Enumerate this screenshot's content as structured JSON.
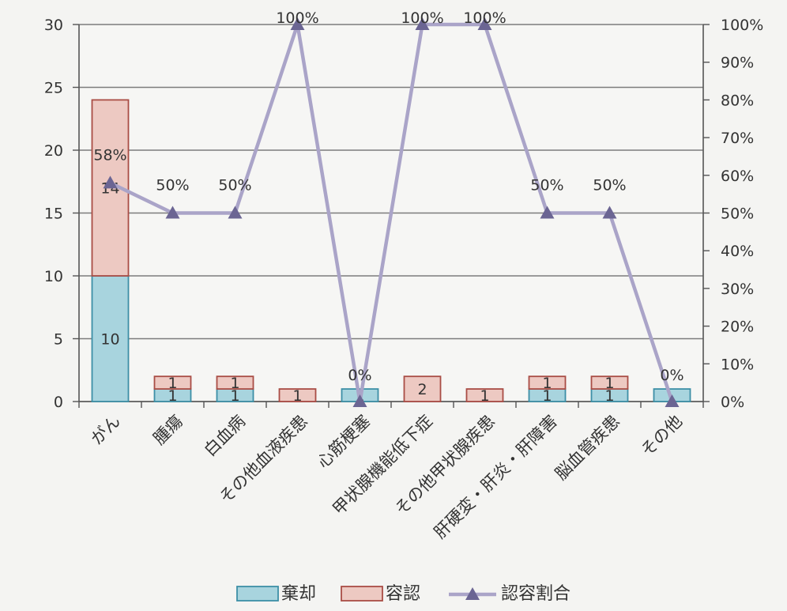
{
  "chart_data": {
    "type": "bar",
    "stacked": true,
    "categories": [
      "がん",
      "腫瘍",
      "白血病",
      "その他血液疾患",
      "心筋梗塞",
      "甲状腺機能低下症",
      "その他甲状腺疾患",
      "肝硬変・肝炎・肝障害",
      "脳血管疾患",
      "その他"
    ],
    "series": [
      {
        "name": "棄却",
        "type": "bar",
        "axis": "left",
        "color": "#a8d4de",
        "stroke": "#3d8fa6",
        "values": [
          10,
          1,
          1,
          0,
          1,
          0,
          0,
          1,
          1,
          1
        ],
        "labels": [
          "10",
          "1",
          "1",
          "",
          "1",
          "",
          "",
          "1",
          "1",
          ""
        ]
      },
      {
        "name": "容認",
        "type": "bar",
        "axis": "left",
        "color": "#edc9c2",
        "stroke": "#a94d45",
        "values": [
          14,
          1,
          1,
          1,
          0,
          2,
          1,
          1,
          1,
          0
        ],
        "labels": [
          "14",
          "1",
          "1",
          "1",
          "",
          "2",
          "1",
          "1",
          "1",
          ""
        ]
      },
      {
        "name": "認容割合",
        "type": "line",
        "axis": "right",
        "color": "#aaa4c8",
        "marker": "#6b6593",
        "values": [
          58,
          50,
          50,
          100,
          0,
          100,
          100,
          50,
          50,
          0
        ],
        "labels": [
          "58%",
          "50%",
          "50%",
          "100%",
          "0%",
          "100%",
          "100%",
          "50%",
          "50%",
          "0%"
        ]
      }
    ],
    "y_left": {
      "min": 0,
      "max": 30,
      "ticks": [
        "0",
        "5",
        "10",
        "15",
        "20",
        "25",
        "30"
      ]
    },
    "y_right": {
      "min": 0,
      "max": 100,
      "ticks": [
        "0%",
        "10%",
        "20%",
        "30%",
        "40%",
        "50%",
        "60%",
        "70%",
        "80%",
        "90%",
        "100%"
      ]
    },
    "grid": true,
    "legend": "bottom"
  },
  "colors": {
    "grid": "#7c7c7c",
    "axis": "#555555",
    "text": "#333333"
  }
}
